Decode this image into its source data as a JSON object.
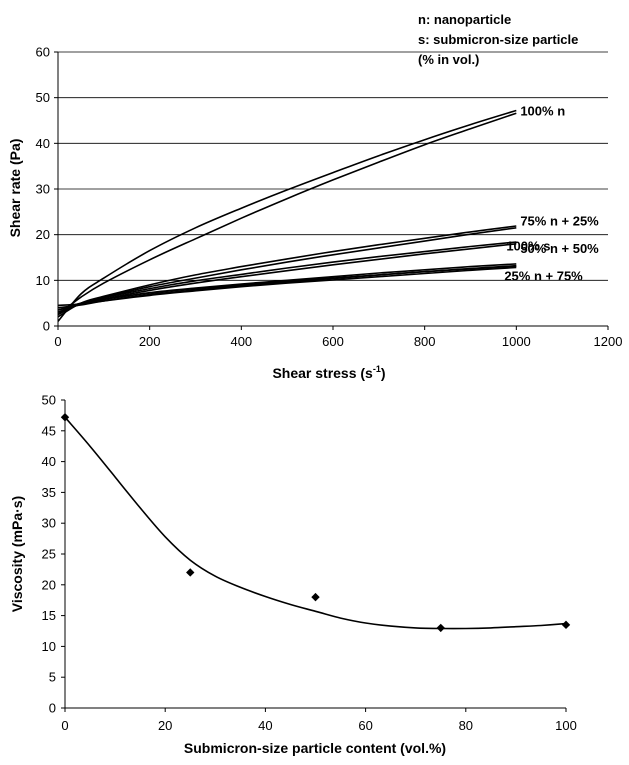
{
  "chart_data": [
    {
      "type": "line",
      "xlabel": "Shear stress (s",
      "xlabel_sup": "-1",
      "xlabel_end": ")",
      "ylabel": "Shear rate (Pa)",
      "xlim": [
        0,
        1200
      ],
      "ylim": [
        0,
        60
      ],
      "x_ticks": [
        "0",
        "200",
        "400",
        "600",
        "800",
        "1000",
        "1200"
      ],
      "y_ticks": [
        "0",
        "10",
        "20",
        "30",
        "40",
        "50",
        "60"
      ],
      "grid": "horizontal",
      "legend_text": [
        "n: nanoparticle",
        "s: submicron-size particle",
        "(% in vol.)"
      ],
      "series": [
        {
          "name": "100% n",
          "label_value": 47,
          "up": [
            [
              0,
              1.0
            ],
            [
              50,
              7.0
            ],
            [
              100,
              10.5
            ],
            [
              200,
              16.5
            ],
            [
              300,
              21.5
            ],
            [
              400,
              25.8
            ],
            [
              500,
              29.8
            ],
            [
              600,
              33.6
            ],
            [
              700,
              37.3
            ],
            [
              800,
              40.8
            ],
            [
              900,
              44.1
            ],
            [
              1000,
              47.2
            ]
          ],
          "down": [
            [
              1000,
              46.6
            ],
            [
              900,
              43.2
            ],
            [
              800,
              39.7
            ],
            [
              700,
              35.9
            ],
            [
              600,
              32.0
            ],
            [
              500,
              27.9
            ],
            [
              400,
              23.6
            ],
            [
              300,
              19.1
            ],
            [
              200,
              14.5
            ],
            [
              100,
              9.4
            ],
            [
              50,
              6.3
            ],
            [
              0,
              2.5
            ]
          ]
        },
        {
          "name": "75% n + 25%",
          "label_value": 22,
          "up": [
            [
              0,
              2.0
            ],
            [
              50,
              5.0
            ],
            [
              100,
              6.5
            ],
            [
              200,
              9.0
            ],
            [
              300,
              11.2
            ],
            [
              400,
              13.0
            ],
            [
              500,
              14.7
            ],
            [
              600,
              16.3
            ],
            [
              700,
              17.8
            ],
            [
              800,
              19.2
            ],
            [
              900,
              20.6
            ],
            [
              1000,
              21.9
            ]
          ],
          "down": [
            [
              1000,
              21.5
            ],
            [
              900,
              20.1
            ],
            [
              800,
              18.6
            ],
            [
              700,
              17.1
            ],
            [
              600,
              15.6
            ],
            [
              500,
              14.0
            ],
            [
              400,
              12.3
            ],
            [
              300,
              10.5
            ],
            [
              200,
              8.6
            ],
            [
              100,
              6.3
            ],
            [
              50,
              4.8
            ],
            [
              0,
              3.0
            ]
          ]
        },
        {
          "name": "50% n + 50%",
          "label_value": 18,
          "up": [
            [
              0,
              2.5
            ],
            [
              50,
              5.0
            ],
            [
              100,
              6.2
            ],
            [
              200,
              8.2
            ],
            [
              300,
              9.9
            ],
            [
              400,
              11.3
            ],
            [
              500,
              12.7
            ],
            [
              600,
              14.0
            ],
            [
              700,
              15.2
            ],
            [
              800,
              16.3
            ],
            [
              900,
              17.4
            ],
            [
              1000,
              18.4
            ]
          ],
          "down": [
            [
              1000,
              18.0
            ],
            [
              900,
              16.9
            ],
            [
              800,
              15.8
            ],
            [
              700,
              14.6
            ],
            [
              600,
              13.4
            ],
            [
              500,
              12.1
            ],
            [
              400,
              10.8
            ],
            [
              300,
              9.4
            ],
            [
              200,
              7.8
            ],
            [
              100,
              5.9
            ],
            [
              50,
              4.7
            ],
            [
              0,
              3.5
            ]
          ]
        },
        {
          "name": "100% s",
          "label_value": 13.5,
          "up": [
            [
              0,
              3.0
            ],
            [
              50,
              4.8
            ],
            [
              100,
              5.8
            ],
            [
              200,
              7.3
            ],
            [
              300,
              8.3
            ],
            [
              400,
              9.2
            ],
            [
              500,
              10.0
            ],
            [
              600,
              10.8
            ],
            [
              700,
              11.6
            ],
            [
              800,
              12.3
            ],
            [
              900,
              13.0
            ],
            [
              1000,
              13.6
            ]
          ],
          "down": [
            [
              1000,
              13.2
            ],
            [
              900,
              12.6
            ],
            [
              800,
              11.9
            ],
            [
              700,
              11.2
            ],
            [
              600,
              10.4
            ],
            [
              500,
              9.6
            ],
            [
              400,
              8.8
            ],
            [
              300,
              7.9
            ],
            [
              200,
              6.9
            ],
            [
              100,
              5.5
            ],
            [
              50,
              4.6
            ],
            [
              0,
              4.0
            ]
          ]
        },
        {
          "name": "25% n + 75%",
          "label_value": 13,
          "up": [
            [
              0,
              3.5
            ],
            [
              50,
              5.0
            ],
            [
              100,
              5.9
            ],
            [
              200,
              7.2
            ],
            [
              300,
              8.2
            ],
            [
              400,
              9.0
            ],
            [
              500,
              9.8
            ],
            [
              600,
              10.5
            ],
            [
              700,
              11.2
            ],
            [
              800,
              11.9
            ],
            [
              900,
              12.5
            ],
            [
              1000,
              13.1
            ]
          ],
          "down": [
            [
              1000,
              12.8
            ],
            [
              900,
              12.2
            ],
            [
              800,
              11.5
            ],
            [
              700,
              10.8
            ],
            [
              600,
              10.1
            ],
            [
              500,
              9.4
            ],
            [
              400,
              8.6
            ],
            [
              300,
              7.7
            ],
            [
              200,
              6.7
            ],
            [
              100,
              5.5
            ],
            [
              50,
              4.8
            ],
            [
              0,
              4.5
            ]
          ]
        }
      ]
    },
    {
      "type": "scatter",
      "xlabel": "Submicron-size particle content (vol.%)",
      "ylabel": "Viscosity (mPa·s)",
      "xlim": [
        0,
        100
      ],
      "ylim": [
        0,
        50
      ],
      "x_ticks": [
        "0",
        "20",
        "40",
        "60",
        "80",
        "100"
      ],
      "y_ticks": [
        "0",
        "5",
        "10",
        "15",
        "20",
        "25",
        "30",
        "35",
        "40",
        "45",
        "50"
      ],
      "grid": "none",
      "points": [
        [
          0,
          47.2
        ],
        [
          25,
          22
        ],
        [
          50,
          18
        ],
        [
          75,
          13
        ],
        [
          100,
          13.5
        ]
      ],
      "trend": [
        [
          0,
          47.2
        ],
        [
          5,
          42.5
        ],
        [
          10,
          37.5
        ],
        [
          15,
          32.5
        ],
        [
          20,
          27.8
        ],
        [
          25,
          24.0
        ],
        [
          30,
          21.4
        ],
        [
          35,
          19.6
        ],
        [
          40,
          18.1
        ],
        [
          45,
          16.8
        ],
        [
          50,
          15.7
        ],
        [
          55,
          14.6
        ],
        [
          60,
          13.8
        ],
        [
          65,
          13.3
        ],
        [
          70,
          13.0
        ],
        [
          75,
          12.9
        ],
        [
          80,
          12.9
        ],
        [
          85,
          13.0
        ],
        [
          90,
          13.2
        ],
        [
          95,
          13.4
        ],
        [
          100,
          13.7
        ]
      ]
    }
  ]
}
